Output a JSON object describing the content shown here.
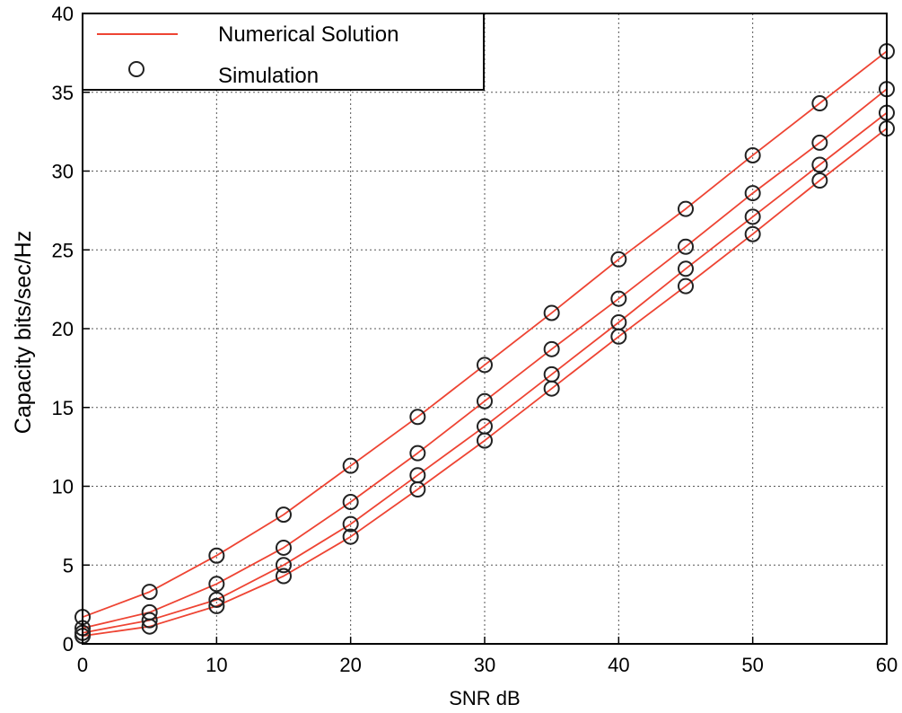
{
  "chart_data": {
    "type": "line",
    "xlabel": "SNR dB",
    "ylabel": "Capacity bits/sec/Hz",
    "xlim": [
      0,
      60
    ],
    "ylim": [
      0,
      40
    ],
    "xticks": [
      "0",
      "10",
      "20",
      "30",
      "40",
      "50",
      "60"
    ],
    "yticks": [
      "0",
      "5",
      "10",
      "15",
      "20",
      "25",
      "30",
      "35",
      "40"
    ],
    "grid": true,
    "legend": {
      "placement": "top-left",
      "entries": [
        {
          "label": "Numerical Solution",
          "marker": "line",
          "color": "#ee4433"
        },
        {
          "label": "Simulation",
          "marker": "circle",
          "color": "#222222"
        }
      ]
    },
    "line_color": "#ee4433",
    "marker_color": "#222222",
    "x": [
      0,
      5,
      10,
      15,
      20,
      25,
      30,
      35,
      40,
      45,
      50,
      55,
      60
    ],
    "series": [
      {
        "values": [
          1.7,
          3.3,
          5.6,
          8.2,
          11.3,
          14.4,
          17.7,
          21.0,
          24.4,
          27.6,
          31.0,
          34.3,
          37.6
        ]
      },
      {
        "values": [
          1.0,
          2.0,
          3.8,
          6.1,
          9.0,
          12.1,
          15.4,
          18.7,
          21.9,
          25.2,
          28.6,
          31.8,
          35.2
        ]
      },
      {
        "values": [
          0.7,
          1.5,
          2.8,
          5.0,
          7.6,
          10.7,
          13.8,
          17.1,
          20.4,
          23.8,
          27.1,
          30.4,
          33.7
        ]
      },
      {
        "values": [
          0.5,
          1.1,
          2.4,
          4.3,
          6.8,
          9.8,
          12.9,
          16.2,
          19.5,
          22.7,
          26.0,
          29.4,
          32.7
        ]
      }
    ]
  }
}
